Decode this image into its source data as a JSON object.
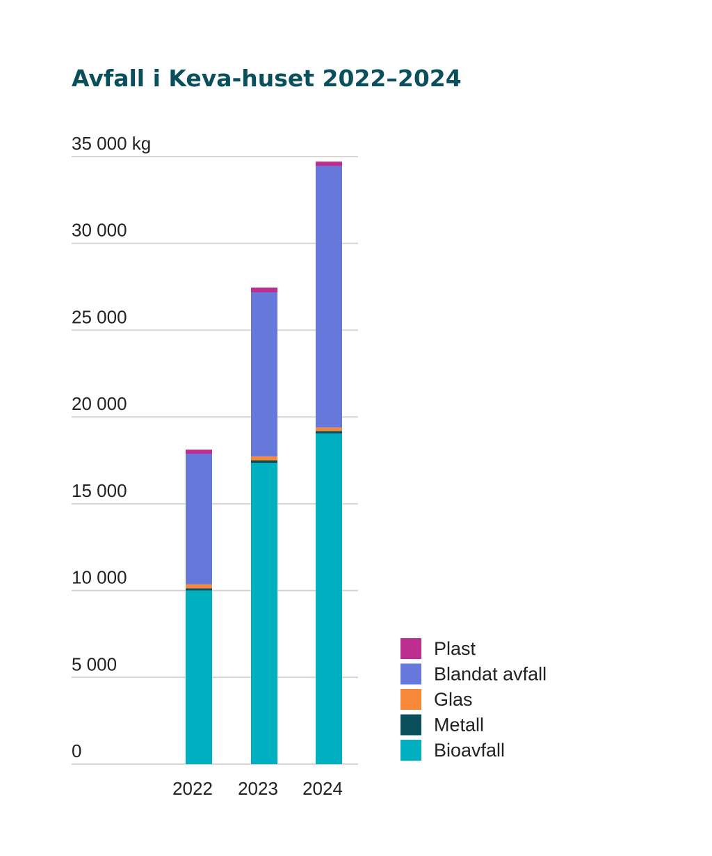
{
  "chart_data": {
    "type": "bar",
    "stacked": true,
    "title": "Avfall i Keva-huset 2022–2024",
    "xlabel": "",
    "ylabel": "",
    "categories": [
      "2022",
      "2023",
      "2024"
    ],
    "ylim": [
      0,
      35000
    ],
    "y_ticks": [
      0,
      5000,
      10000,
      15000,
      20000,
      25000,
      30000,
      35000
    ],
    "y_tick_labels": [
      "0",
      "5 000",
      "10 000",
      "15 000",
      "20 000",
      "25 000",
      "30 000",
      "35 000 kg"
    ],
    "grid": true,
    "legend_position": "bottom-right",
    "series": [
      {
        "name": "Bioavfall",
        "color": "#00b0c0",
        "values": [
          10000,
          17350,
          19050
        ]
      },
      {
        "name": "Metall",
        "color": "#0b4f5c",
        "values": [
          130,
          150,
          140
        ]
      },
      {
        "name": "Glas",
        "color": "#f7883a",
        "values": [
          230,
          230,
          200
        ]
      },
      {
        "name": "Blandat avfall",
        "color": "#6678da",
        "values": [
          7520,
          9450,
          15070
        ]
      },
      {
        "name": "Plast",
        "color": "#bd2f8e",
        "values": [
          240,
          270,
          250
        ]
      }
    ]
  }
}
